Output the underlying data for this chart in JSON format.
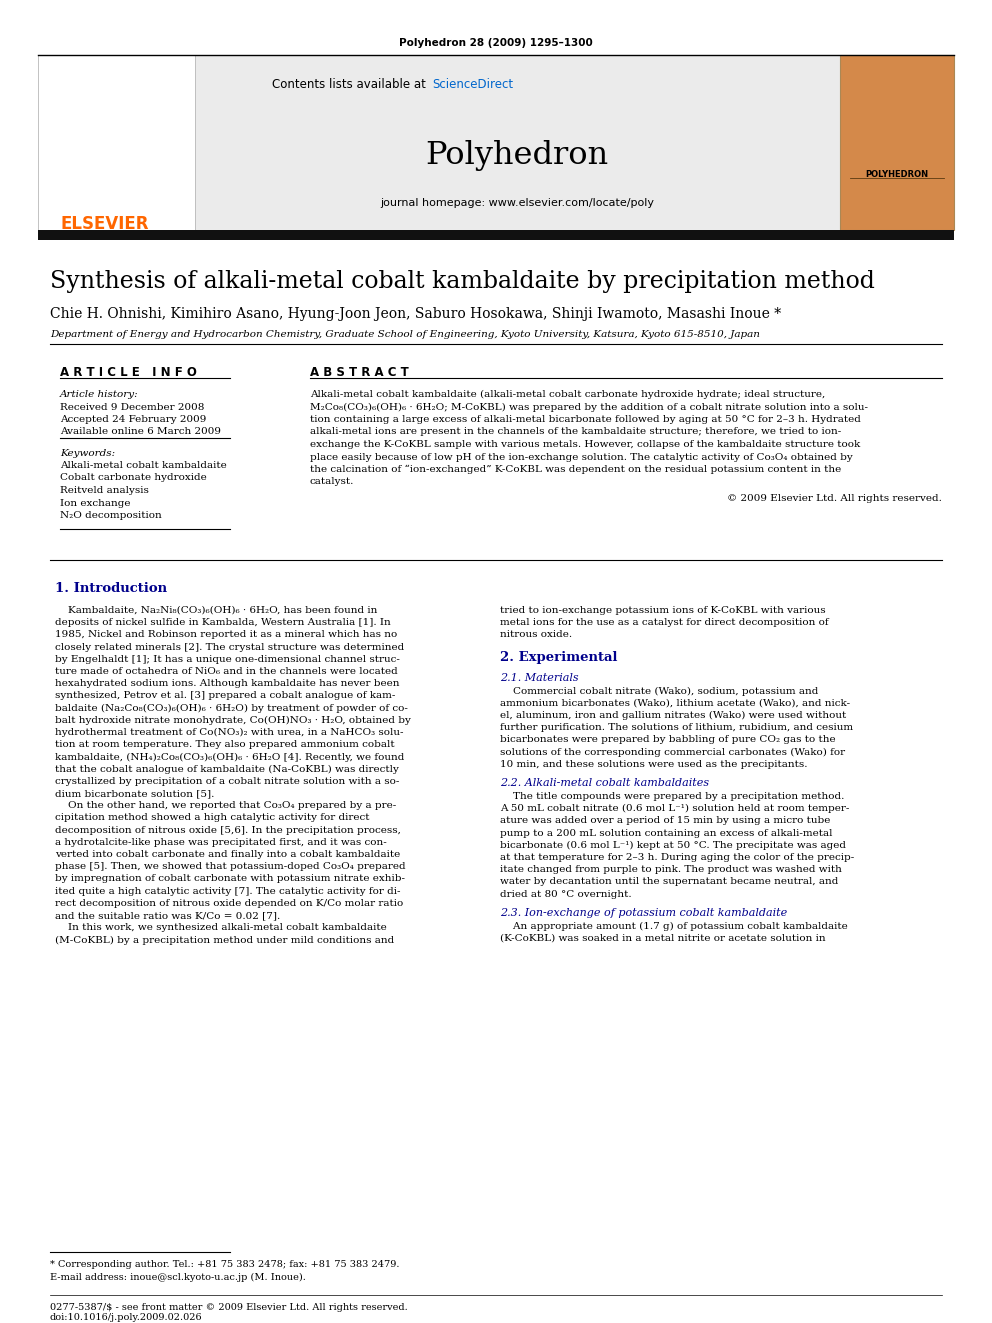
{
  "page_title": "Polyhedron 28 (2009) 1295–1300",
  "journal_name": "Polyhedron",
  "contents_line1": "Contents lists available at ",
  "contents_sciencedirect": "ScienceDirect",
  "homepage": "journal homepage: www.elsevier.com/locate/poly",
  "paper_title": "Synthesis of alkali-metal cobalt kambaldaite by precipitation method",
  "authors": "Chie H. Ohnishi, Kimihiro Asano, Hyung-Joon Jeon, Saburo Hosokawa, Shinji Iwamoto, Masashi Inoue *",
  "affiliation": "Department of Energy and Hydrocarbon Chemistry, Graduate School of Engineering, Kyoto University, Katsura, Kyoto 615-8510, Japan",
  "article_info_header": "A R T I C L E   I N F O",
  "abstract_header": "A B S T R A C T",
  "article_history_label": "Article history:",
  "received": "Received 9 December 2008",
  "accepted": "Accepted 24 February 2009",
  "available": "Available online 6 March 2009",
  "keywords_label": "Keywords:",
  "keywords": [
    "Alkali-metal cobalt kambaldaite",
    "Cobalt carbonate hydroxide",
    "Reitveld analysis",
    "Ion exchange",
    "N₂O decomposition"
  ],
  "copyright": "© 2009 Elsevier Ltd. All rights reserved.",
  "abstract_lines": [
    "Alkali-metal cobalt kambaldaite (alkali-metal cobalt carbonate hydroxide hydrate; ideal structure,",
    "M₂Co₈(CO₃)₆(OH)₆ · 6H₂O; M-CoKBL) was prepared by the addition of a cobalt nitrate solution into a solu-",
    "tion containing a large excess of alkali-metal bicarbonate followed by aging at 50 °C for 2–3 h. Hydrated",
    "alkali-metal ions are present in the channels of the kambaldaite structure; therefore, we tried to ion-",
    "exchange the K-CoKBL sample with various metals. However, collapse of the kambaldaite structure took",
    "place easily because of low pH of the ion-exchange solution. The catalytic activity of Co₃O₄ obtained by",
    "the calcination of “ion-exchanged” K-CoKBL was dependent on the residual potassium content in the",
    "catalyst."
  ],
  "section1_header": "1. Introduction",
  "intro_left_lines": [
    "    Kambaldaite, Na₂Ni₈(CO₃)₆(OH)₆ · 6H₂O, has been found in",
    "deposits of nickel sulfide in Kambalda, Western Australia [1]. In",
    "1985, Nickel and Robinson reported it as a mineral which has no",
    "closely related minerals [2]. The crystal structure was determined",
    "by Engelhaldt [1]; It has a unique one-dimensional channel struc-",
    "ture made of octahedra of NiO₆ and in the channels were located",
    "hexahydrated sodium ions. Although kambaldaite has never been",
    "synthesized, Petrov et al. [3] prepared a cobalt analogue of kam-",
    "baldaite (Na₂Co₈(CO₃)₆(OH)₆ · 6H₂O) by treatment of powder of co-",
    "balt hydroxide nitrate monohydrate, Co(OH)NO₃ · H₂O, obtained by",
    "hydrothermal treatment of Co(NO₃)₂ with urea, in a NaHCO₃ solu-",
    "tion at room temperature. They also prepared ammonium cobalt",
    "kambaldaite, (NH₄)₂Co₈(CO₃)₆(OH)₆ · 6H₂O [4]. Recently, we found",
    "that the cobalt analogue of kambaldaite (Na-CoKBL) was directly",
    "crystallized by precipitation of a cobalt nitrate solution with a so-",
    "dium bicarbonate solution [5].",
    "    On the other hand, we reported that Co₃O₄ prepared by a pre-",
    "cipitation method showed a high catalytic activity for direct",
    "decomposition of nitrous oxide [5,6]. In the precipitation process,",
    "a hydrotalcite-like phase was precipitated first, and it was con-",
    "verted into cobalt carbonate and finally into a cobalt kambaldaite",
    "phase [5]. Then, we showed that potassium-doped Co₃O₄ prepared",
    "by impregnation of cobalt carbonate with potassium nitrate exhib-",
    "ited quite a high catalytic activity [7]. The catalytic activity for di-",
    "rect decomposition of nitrous oxide depended on K/Co molar ratio",
    "and the suitable ratio was K/Co = 0.02 [7].",
    "    In this work, we synthesized alkali-metal cobalt kambaldaite",
    "(M-CoKBL) by a precipitation method under mild conditions and"
  ],
  "intro_right_lines": [
    "tried to ion-exchange potassium ions of K-CoKBL with various",
    "metal ions for the use as a catalyst for direct decomposition of",
    "nitrous oxide."
  ],
  "section2_header": "2. Experimental",
  "section21_header": "2.1. Materials",
  "section21_lines": [
    "    Commercial cobalt nitrate (Wako), sodium, potassium and",
    "ammonium bicarbonates (Wako), lithium acetate (Wako), and nick-",
    "el, aluminum, iron and gallium nitrates (Wako) were used without",
    "further purification. The solutions of lithium, rubidium, and cesium",
    "bicarbonates were prepared by babbling of pure CO₂ gas to the",
    "solutions of the corresponding commercial carbonates (Wako) for",
    "10 min, and these solutions were used as the precipitants."
  ],
  "section22_header": "2.2. Alkali-metal cobalt kambaldaites",
  "section22_lines": [
    "    The title compounds were prepared by a precipitation method.",
    "A 50 mL cobalt nitrate (0.6 mol L⁻¹) solution held at room temper-",
    "ature was added over a period of 15 min by using a micro tube",
    "pump to a 200 mL solution containing an excess of alkali-metal",
    "bicarbonate (0.6 mol L⁻¹) kept at 50 °C. The precipitate was aged",
    "at that temperature for 2–3 h. During aging the color of the precip-",
    "itate changed from purple to pink. The product was washed with",
    "water by decantation until the supernatant became neutral, and",
    "dried at 80 °C overnight."
  ],
  "section23_header": "2.3. Ion-exchange of potassium cobalt kambaldaite",
  "section23_lines": [
    "    An appropriate amount (1.7 g) of potassium cobalt kambaldaite",
    "(K-CoKBL) was soaked in a metal nitrite or acetate solution in"
  ],
  "footnote_line": "* Corresponding author. Tel.: +81 75 383 2478; fax: +81 75 383 2479.",
  "footnote_email": "E-mail address: inoue@scl.kyoto-u.ac.jp (M. Inoue).",
  "footer_left": "0277-5387/$ - see front matter © 2009 Elsevier Ltd. All rights reserved.",
  "footer_doi": "doi:10.1016/j.poly.2009.02.026",
  "elsevier_color": "#FF6600",
  "sciencedirect_color": "#0066CC",
  "header_bg": "#E8E8E8",
  "thick_bar_color": "#111111",
  "section_header_color": "#00008B",
  "blue_ref_color": "#0000CC"
}
